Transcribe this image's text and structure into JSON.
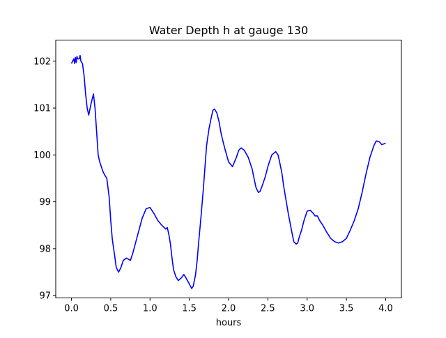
{
  "chart_data": {
    "type": "line",
    "title": "Water Depth h at gauge 130",
    "xlabel": "hours",
    "ylabel": "",
    "xlim": [
      -0.2,
      4.2
    ],
    "ylim": [
      96.95,
      102.45
    ],
    "xticks": [
      0.0,
      0.5,
      1.0,
      1.5,
      2.0,
      2.5,
      3.0,
      3.5,
      4.0
    ],
    "xtick_labels": [
      "0.0",
      "0.5",
      "1.0",
      "1.5",
      "2.0",
      "2.5",
      "3.0",
      "3.5",
      "4.0"
    ],
    "yticks": [
      97,
      98,
      99,
      100,
      101,
      102
    ],
    "ytick_labels": [
      "97",
      "98",
      "99",
      "100",
      "101",
      "102"
    ],
    "grid": false,
    "line_color": "#0000ff",
    "series": [
      {
        "x": [
          0.0,
          0.03,
          0.04,
          0.05,
          0.06,
          0.07,
          0.08,
          0.1,
          0.11,
          0.12,
          0.14,
          0.16,
          0.18,
          0.2,
          0.22,
          0.25,
          0.28,
          0.3,
          0.32,
          0.34,
          0.36,
          0.38,
          0.4,
          0.42,
          0.45,
          0.48,
          0.5,
          0.52,
          0.55,
          0.57,
          0.6,
          0.63,
          0.66,
          0.7,
          0.75,
          0.78,
          0.82,
          0.86,
          0.9,
          0.95,
          1.0,
          1.05,
          1.1,
          1.15,
          1.2,
          1.22,
          1.24,
          1.26,
          1.28,
          1.3,
          1.33,
          1.36,
          1.4,
          1.43,
          1.45,
          1.5,
          1.53,
          1.55,
          1.58,
          1.6,
          1.62,
          1.65,
          1.68,
          1.7,
          1.72,
          1.75,
          1.78,
          1.8,
          1.82,
          1.85,
          1.88,
          1.9,
          1.92,
          1.95,
          2.0,
          2.05,
          2.1,
          2.13,
          2.16,
          2.2,
          2.25,
          2.3,
          2.33,
          2.35,
          2.38,
          2.4,
          2.43,
          2.47,
          2.5,
          2.55,
          2.6,
          2.63,
          2.65,
          2.68,
          2.7,
          2.73,
          2.76,
          2.8,
          2.83,
          2.86,
          2.88,
          2.9,
          2.93,
          2.96,
          3.0,
          3.04,
          3.08,
          3.1,
          3.13,
          3.16,
          3.2,
          3.25,
          3.3,
          3.35,
          3.4,
          3.45,
          3.5,
          3.55,
          3.6,
          3.65,
          3.7,
          3.75,
          3.8,
          3.85,
          3.88,
          3.92,
          3.95,
          4.0
        ],
        "values": [
          101.95,
          102.05,
          101.95,
          102.08,
          101.97,
          102.1,
          102.05,
          102.05,
          102.12,
          102.0,
          101.95,
          101.7,
          101.3,
          101.0,
          100.85,
          101.1,
          101.3,
          101.0,
          100.5,
          100.0,
          99.85,
          99.75,
          99.65,
          99.58,
          99.5,
          99.1,
          98.6,
          98.2,
          97.85,
          97.6,
          97.5,
          97.6,
          97.75,
          97.8,
          97.75,
          97.9,
          98.15,
          98.4,
          98.65,
          98.85,
          98.88,
          98.75,
          98.6,
          98.5,
          98.42,
          98.45,
          98.3,
          98.1,
          97.8,
          97.55,
          97.4,
          97.32,
          97.38,
          97.45,
          97.4,
          97.25,
          97.15,
          97.2,
          97.45,
          97.75,
          98.15,
          98.7,
          99.3,
          99.75,
          100.2,
          100.55,
          100.8,
          100.95,
          100.98,
          100.9,
          100.7,
          100.5,
          100.35,
          100.15,
          99.85,
          99.75,
          99.95,
          100.1,
          100.15,
          100.1,
          99.95,
          99.7,
          99.45,
          99.3,
          99.2,
          99.22,
          99.35,
          99.55,
          99.75,
          100.0,
          100.07,
          100.0,
          99.85,
          99.6,
          99.35,
          99.05,
          98.75,
          98.4,
          98.15,
          98.1,
          98.12,
          98.25,
          98.4,
          98.6,
          98.8,
          98.82,
          98.75,
          98.7,
          98.7,
          98.6,
          98.5,
          98.35,
          98.22,
          98.15,
          98.12,
          98.15,
          98.22,
          98.4,
          98.6,
          98.85,
          99.2,
          99.6,
          99.95,
          100.2,
          100.3,
          100.28,
          100.22,
          100.25
        ]
      }
    ]
  }
}
